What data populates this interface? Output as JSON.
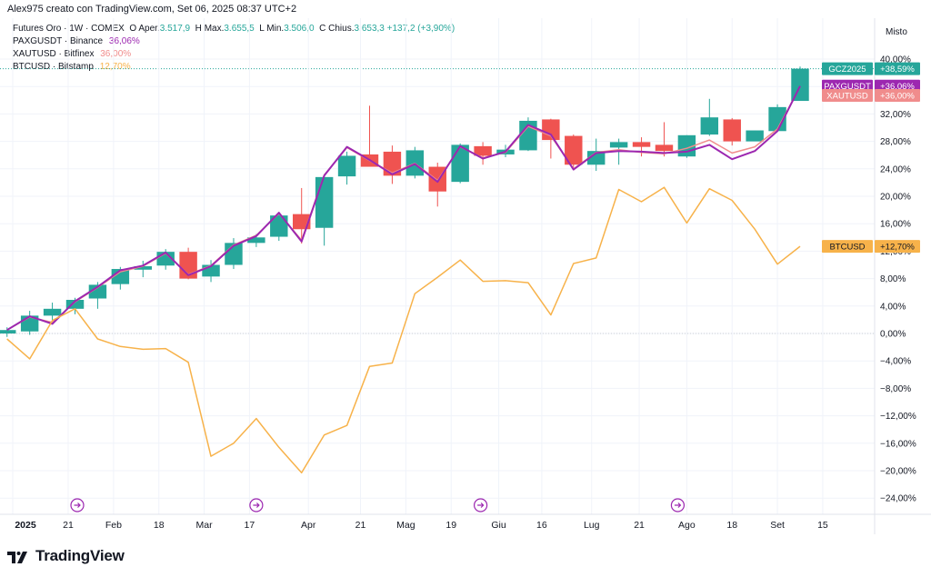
{
  "header": {
    "created": "Alex975 creato con TradingView.com, Set 06, 2025 08:37 UTC+2"
  },
  "legend": {
    "main": {
      "label": "Futures Oro · 1W · COMEX",
      "o_label": "O",
      "o_text": "Aper.",
      "open": "3.517,9",
      "h_label": "H",
      "h_text": "Max.",
      "high": "3.655,5",
      "l_label": "L",
      "l_text": "Min.",
      "low": "3.506,0",
      "c_label": "C",
      "c_text": "Chius.",
      "close": "3.653,3",
      "change": "+137,2 (+3,90%)"
    },
    "items": [
      {
        "label": "PAXGUSDT · Binance",
        "value": "36,06%",
        "color": "#9c27b0"
      },
      {
        "label": "XAUTUSD · Bitfinex",
        "value": "36,00%",
        "color": "#f08c8c"
      },
      {
        "label": "BTCUSD · Bitstamp",
        "value": "12,70%",
        "color": "#f7b24a"
      }
    ]
  },
  "axis": {
    "title": "Misto",
    "y_ticks": [
      "40,00%",
      "36,00%",
      "32,00%",
      "28,00%",
      "24,00%",
      "20,00%",
      "16,00%",
      "12,00%",
      "8,00%",
      "4,00%",
      "0,00%",
      "−4,00%",
      "−8,00%",
      "−12,00%",
      "−16,00%",
      "−20,00%",
      "−24,00%"
    ],
    "x_ticks": [
      {
        "label": "2025",
        "w": 0,
        "bold": true
      },
      {
        "label": "21",
        "w": 2.7
      },
      {
        "label": "Feb",
        "w": 4.7
      },
      {
        "label": "18",
        "w": 6.7
      },
      {
        "label": "Mar",
        "w": 8.7
      },
      {
        "label": "17",
        "w": 10.7
      },
      {
        "label": "Apr",
        "w": 13.3
      },
      {
        "label": "21",
        "w": 15.6
      },
      {
        "label": "Mag",
        "w": 17.6
      },
      {
        "label": "19",
        "w": 19.6
      },
      {
        "label": "Giu",
        "w": 21.7
      },
      {
        "label": "16",
        "w": 23.6
      },
      {
        "label": "Lug",
        "w": 25.8
      },
      {
        "label": "21",
        "w": 27.9
      },
      {
        "label": "Ago",
        "w": 30.0
      },
      {
        "label": "18",
        "w": 32.0
      },
      {
        "label": "Set",
        "w": 34.0
      },
      {
        "label": "15",
        "w": 36.0
      }
    ]
  },
  "price_labels": [
    {
      "name": "GCZ2025",
      "value": "+38,59%",
      "y": 38.59,
      "bg": "#26a69a",
      "fg": "#ffffff"
    },
    {
      "name": "PAXGUSDT",
      "value": "+36,06%",
      "y": 36.06,
      "bg": "#9c27b0",
      "fg": "#ffffff"
    },
    {
      "name": "XAUTUSD",
      "value": "+36,00%",
      "y": 34.7,
      "bg": "#f08c8c",
      "fg": "#ffffff"
    },
    {
      "name": "BTCUSD",
      "value": "+12,70%",
      "y": 12.7,
      "bg": "#f7b24a",
      "fg": "#131722"
    }
  ],
  "branding": {
    "text": "TradingView"
  },
  "colors": {
    "up": "#26a69a",
    "down": "#ef5350",
    "paxg": "#9c27b0",
    "xaut": "#f08c8c",
    "btc": "#f7b24a"
  },
  "chart_data": {
    "type": "line",
    "title": "Futures Oro · 1W · COMEX",
    "ylim": [
      -26,
      42
    ],
    "y_unit": "%",
    "candles": [
      [
        0.0,
        0.0,
        0.9,
        -0.5,
        0.5
      ],
      [
        1.0,
        0.3,
        3.3,
        -0.2,
        2.6
      ],
      [
        2.0,
        2.6,
        4.5,
        1.8,
        3.6
      ],
      [
        3.0,
        3.6,
        5.2,
        2.8,
        4.9
      ],
      [
        4.0,
        5.1,
        7.5,
        3.6,
        7.1
      ],
      [
        5.0,
        7.2,
        9.7,
        6.4,
        9.4
      ],
      [
        6.0,
        9.3,
        10.6,
        8.2,
        9.8
      ],
      [
        7.0,
        9.9,
        12.3,
        9.3,
        11.9
      ],
      [
        8.0,
        11.9,
        12.5,
        7.9,
        8.0
      ],
      [
        9.0,
        8.3,
        10.7,
        7.5,
        10.0
      ],
      [
        10.0,
        10.0,
        13.9,
        9.4,
        13.2
      ],
      [
        11.0,
        13.2,
        14.5,
        12.6,
        14.0
      ],
      [
        12.0,
        14.1,
        17.7,
        13.5,
        17.2
      ],
      [
        13.0,
        17.4,
        21.2,
        13.1,
        15.2
      ],
      [
        14.0,
        15.4,
        23.2,
        12.8,
        22.8
      ],
      [
        15.0,
        22.9,
        26.5,
        21.7,
        25.9
      ],
      [
        16.0,
        26.1,
        33.2,
        24.5,
        24.3
      ],
      [
        17.0,
        26.5,
        27.4,
        21.8,
        23.0
      ],
      [
        18.0,
        23.0,
        27.2,
        22.6,
        26.7
      ],
      [
        19.0,
        24.3,
        24.9,
        18.5,
        20.7
      ],
      [
        20.0,
        22.1,
        27.7,
        21.9,
        27.5
      ],
      [
        21.0,
        27.3,
        27.9,
        24.6,
        25.9
      ],
      [
        22.0,
        26.1,
        27.5,
        25.7,
        26.8
      ],
      [
        23.0,
        26.7,
        31.5,
        26.6,
        31.0
      ],
      [
        24.0,
        31.2,
        31.3,
        25.5,
        28.2
      ],
      [
        25.0,
        28.8,
        29.0,
        24.2,
        24.6
      ],
      [
        26.0,
        24.6,
        28.4,
        23.7,
        26.6
      ],
      [
        27.0,
        27.1,
        28.4,
        24.6,
        27.9
      ],
      [
        28.0,
        27.9,
        28.6,
        25.8,
        27.2
      ],
      [
        29.0,
        27.5,
        30.8,
        25.8,
        26.6
      ],
      [
        30.0,
        25.8,
        28.9,
        25.6,
        28.9
      ],
      [
        31.0,
        29.0,
        34.2,
        28.8,
        31.5
      ],
      [
        32.0,
        31.2,
        31.4,
        27.4,
        28.0
      ],
      [
        33.0,
        28.0,
        29.6,
        28.3,
        29.6
      ],
      [
        34.0,
        29.5,
        33.4,
        29.4,
        33.0
      ],
      [
        35.0,
        33.9,
        38.9,
        33.9,
        38.6
      ]
    ],
    "series": [
      {
        "name": "PAXGUSDT · Binance",
        "x": [
          0,
          1,
          2,
          3,
          4,
          5,
          6,
          7,
          8,
          9,
          10,
          11,
          12,
          13,
          14,
          15,
          16,
          17,
          18,
          19,
          20,
          21,
          22,
          23,
          24,
          25,
          26,
          27,
          28,
          29,
          30,
          31,
          32,
          33,
          34,
          35
        ],
        "values": [
          0.5,
          2.5,
          1.4,
          4.7,
          6.8,
          9.2,
          9.9,
          11.8,
          8.5,
          9.8,
          12.8,
          14.2,
          17.6,
          13.4,
          23.0,
          27.2,
          25.3,
          23.2,
          24.7,
          22.1,
          27.3,
          25.5,
          26.5,
          30.4,
          29.0,
          23.9,
          26.3,
          26.6,
          26.5,
          26.3,
          26.5,
          27.5,
          25.4,
          26.6,
          29.5,
          36.06
        ]
      },
      {
        "name": "XAUTUSD · Bitfinex",
        "x": [
          0,
          1,
          2,
          3,
          4,
          5,
          6,
          7,
          8,
          9,
          10,
          11,
          12,
          13,
          14,
          15,
          16,
          17,
          18,
          19,
          20,
          21,
          22,
          23,
          24,
          25,
          26,
          27,
          28,
          29,
          30,
          31,
          32,
          33,
          34,
          35
        ],
        "values": [
          0.5,
          2.4,
          1.6,
          4.6,
          6.7,
          9.0,
          9.8,
          11.7,
          8.6,
          9.9,
          12.9,
          14.3,
          17.5,
          13.6,
          23.1,
          27.1,
          25.2,
          23.4,
          24.8,
          22.3,
          27.2,
          25.6,
          26.4,
          30.2,
          28.8,
          24.0,
          26.4,
          26.8,
          26.4,
          26.2,
          27.0,
          28.2,
          26.3,
          27.2,
          29.8,
          36.0
        ]
      },
      {
        "name": "BTCUSD · Bitstamp",
        "x": [
          0,
          1,
          2,
          3,
          4,
          5,
          6,
          7,
          8,
          9,
          10,
          11,
          12,
          13,
          14,
          15,
          16,
          17,
          18,
          19,
          20,
          21,
          22,
          23,
          24,
          25,
          26,
          27,
          28,
          29,
          30,
          31,
          32,
          33,
          34,
          35
        ],
        "values": [
          -0.8,
          -3.7,
          1.9,
          3.6,
          -0.8,
          -1.9,
          -2.3,
          -2.2,
          -4.2,
          -17.9,
          -16.0,
          -12.4,
          -16.6,
          -20.3,
          -14.8,
          -13.4,
          -4.8,
          -4.3,
          5.8,
          8.2,
          10.7,
          7.6,
          7.7,
          7.4,
          2.7,
          10.2,
          11.0,
          21.0,
          19.2,
          21.3,
          16.1,
          21.1,
          19.4,
          15.2,
          10.1,
          12.7
        ]
      }
    ],
    "x_unit": "weeks since start of 2025"
  }
}
